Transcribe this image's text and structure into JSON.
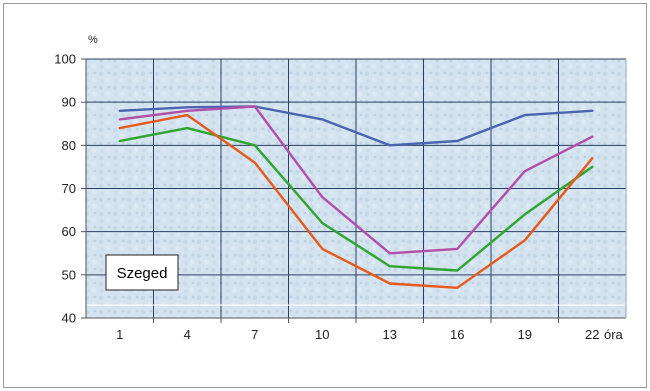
{
  "chart_data": {
    "type": "line",
    "title": "",
    "xlabel": "óra",
    "ylabel": "%",
    "x": [
      1,
      4,
      7,
      10,
      13,
      16,
      19,
      22
    ],
    "x_tick_labels": [
      "1",
      "4",
      "7",
      "10",
      "13",
      "16",
      "19",
      "22"
    ],
    "y_ticks": [
      40,
      50,
      60,
      70,
      80,
      90,
      100
    ],
    "ylim": [
      40,
      100
    ],
    "xlim": [
      -0.5,
      23.5
    ],
    "grid": true,
    "legend": "none",
    "annotation": "Szeged",
    "series": [
      {
        "color": "#4a64b0",
        "values": [
          88,
          88.8,
          89,
          86,
          80,
          81,
          87,
          88
        ]
      },
      {
        "color": "#b34fa8",
        "values": [
          86,
          88,
          89,
          68,
          55,
          56,
          74,
          82
        ]
      },
      {
        "color": "#2fa52f",
        "values": [
          81,
          84,
          80,
          62,
          52,
          51,
          64,
          75
        ]
      },
      {
        "color": "#e85a1c",
        "values": [
          84,
          87,
          76,
          56,
          48,
          47,
          58,
          77
        ]
      }
    ]
  }
}
